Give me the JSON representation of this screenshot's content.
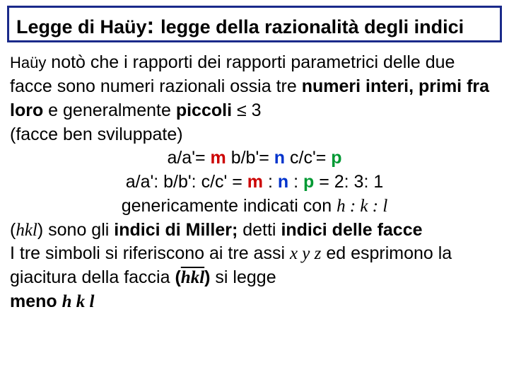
{
  "colors": {
    "border": "#1a2a8a",
    "text": "#000000",
    "m": "#cc0000",
    "n": "#0033cc",
    "p": "#009933",
    "background": "#ffffff"
  },
  "title": {
    "part1": "Legge di Haüy",
    "colon": ": ",
    "part2": "legge della razionalità degli indici"
  },
  "body": {
    "author": "Haüy",
    "line1a": " notò che i rapporti dei rapporti parametrici delle due facce sono numeri razionali ossia tre ",
    "numeri_interi": "numeri interi, primi fra loro",
    "line1b": " e generalmente ",
    "piccoli": "piccoli",
    "leq3": "  ≤ 3",
    "faces_dev": "(facce ben sviluppate)",
    "eq_a": "a/a'= ",
    "m": "m",
    "eq_b": "   b/b'= ",
    "n": "n",
    "eq_c": "   c/c'= ",
    "p": "p",
    "ratio_label": "a/a': b/b': c/c' = ",
    "ratio_sep1": " : ",
    "ratio_sep2": " : ",
    "ratio_eq": " = 2: 3: 1",
    "generic_pre": "genericamente indicati con ",
    "h": "h",
    "k": "k",
    "l": "l",
    "sep_hkl": " : ",
    "open_paren": "(",
    "close_paren": ")",
    "hkl": "hkl",
    "miller_text": " sono gli ",
    "miller_bold": "indici di Miller;",
    "miller_text2": "  detti ",
    "facce_bold": "indici delle facce",
    "line_tre": "I tre simboli si riferiscono ai tre assi ",
    "xyz": "x y z",
    "line_ed": "  ed esprimono  la giacitura della faccia ",
    "hkl_bar": "hkl",
    "si_legge": " si legge",
    "meno": " meno ",
    "hkl_final": "h k l"
  }
}
